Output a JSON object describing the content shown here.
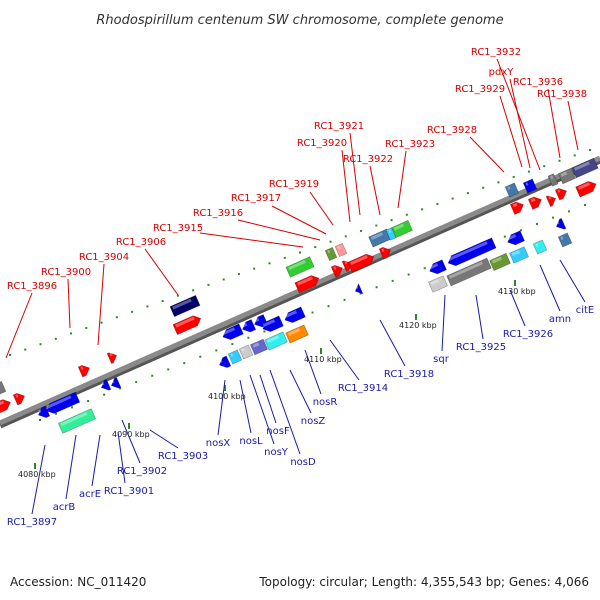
{
  "title": "Rhodospirillum centenum SW chromosome, complete genome",
  "footer": {
    "accession": "Accession: NC_011420",
    "topology": "Topology: circular; Length: 4,355,543 bp; Genes: 4,066"
  },
  "colors": {
    "top_strand_label": "#d40000",
    "bottom_strand_label": "#1a1aa8",
    "backbone": "#8a8a8a",
    "tick_dot": "#2a8a2a"
  },
  "scale_ticks": [
    "4080 kbp",
    "4090 kbp",
    "4100 kbp",
    "4110 kbp",
    "4120 kbp",
    "4130 kbp"
  ],
  "top_strand_labels": [
    "RC1_3896",
    "RC1_3900",
    "RC1_3904",
    "RC1_3906",
    "RC1_3915",
    "RC1_3916",
    "RC1_3917",
    "RC1_3919",
    "RC1_3920",
    "RC1_3921",
    "RC1_3922",
    "RC1_3923",
    "RC1_3928",
    "RC1_3929",
    "pdxY",
    "RC1_3932",
    "RC1_3936",
    "RC1_3938"
  ],
  "bottom_strand_labels": [
    "RC1_3897",
    "acrB",
    "acrE",
    "RC1_3901",
    "RC1_3902",
    "RC1_3903",
    "nosX",
    "nosL",
    "nosY",
    "nosF",
    "nosD",
    "nosZ",
    "nosR",
    "RC1_3914",
    "RC1_3918",
    "sqr",
    "RC1_3925",
    "RC1_3926",
    "amn",
    "citE"
  ],
  "gene_colors": {
    "red": "#ff0000",
    "navy": "#000066",
    "blue": "#0000ee",
    "green": "#33cc33",
    "olive": "#669933",
    "salmon": "#ff9999",
    "steel": "#4477aa",
    "sky": "#33ccff",
    "gray": "#777777",
    "lightgray": "#cccccc",
    "slate": "#444488",
    "mint": "#33ee99",
    "cyan": "#33eeee",
    "orange": "#ff8800",
    "purple": "#6666cc"
  }
}
